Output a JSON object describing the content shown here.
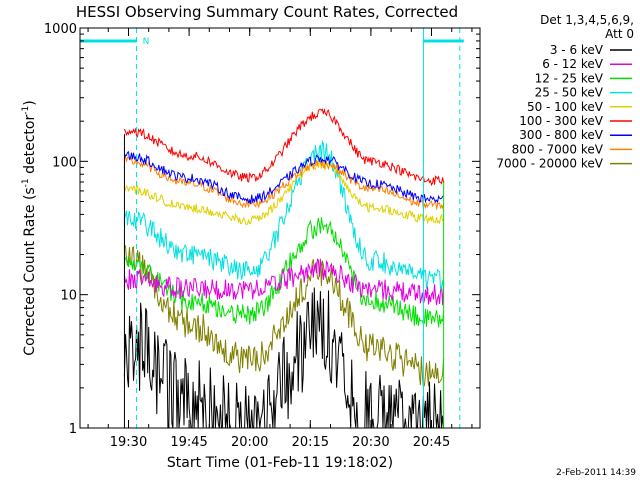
{
  "chart_data": {
    "type": "line",
    "title": "HESSI Observing Summary Count Rates, Corrected",
    "xlabel": "Start Time (01-Feb-11 19:18:02)",
    "ylabel": "Corrected Count Rate (s",
    "ylabel_sup1": "-1",
    "ylabel_mid": " detector",
    "ylabel_sup2": "-1",
    "ylabel_end": ")",
    "y_scale": "log",
    "ylim": [
      1,
      1000
    ],
    "xlim_minutes": [
      19.3,
      20.95
    ],
    "x_ticks": [
      "19:30",
      "19:45",
      "20:00",
      "20:15",
      "20:30",
      "20:45"
    ],
    "y_ticks": [
      "1",
      "10",
      "100",
      "1000"
    ],
    "legend_header": [
      "Det 1,3,4,5,6,9,",
      "Att 0"
    ],
    "footer_date": "2-Feb-2011 14:39",
    "data_window": [
      "19:29",
      "20:48"
    ],
    "attenuator_marker": "N",
    "attenuator_intervals": [
      [
        "19:18",
        "19:32"
      ],
      [
        "20:43",
        "20:53"
      ]
    ],
    "series": [
      {
        "name": "3 - 6 keV",
        "color": "#000000",
        "values_at": {
          "19:30": 4.5,
          "19:45": 1.5,
          "20:00": 1.0,
          "20:18": 5.5,
          "20:30": 1.2,
          "20:45": 1.0
        }
      },
      {
        "name": "6 - 12 keV",
        "color": "#e000e0",
        "values_at": {
          "19:30": 13,
          "19:45": 11,
          "20:00": 11,
          "20:18": 15.5,
          "20:30": 11,
          "20:45": 10
        }
      },
      {
        "name": "12 - 25 keV",
        "color": "#00e000",
        "values_at": {
          "19:30": 18,
          "19:45": 9,
          "20:00": 7,
          "20:18": 33,
          "20:30": 9,
          "20:45": 6.5
        }
      },
      {
        "name": "25 - 50 keV",
        "color": "#00e0e0",
        "values_at": {
          "19:30": 38,
          "19:45": 20,
          "20:00": 15,
          "20:18": 120,
          "20:30": 18,
          "20:45": 13
        }
      },
      {
        "name": "50 - 100 keV",
        "color": "#e0d000",
        "values_at": {
          "19:30": 62,
          "19:45": 45,
          "20:00": 36,
          "20:18": 95,
          "20:30": 45,
          "20:45": 37
        }
      },
      {
        "name": "100 - 300 keV",
        "color": "#ff0000",
        "values_at": {
          "19:30": 170,
          "19:45": 110,
          "20:00": 75,
          "20:18": 230,
          "20:30": 100,
          "20:45": 72
        }
      },
      {
        "name": "300 - 800 keV",
        "color": "#0000ff",
        "values_at": {
          "19:30": 110,
          "19:45": 75,
          "20:00": 52,
          "20:18": 105,
          "20:30": 68,
          "20:45": 52
        }
      },
      {
        "name": "800 - 7000 keV",
        "color": "#ff8000",
        "values_at": {
          "19:30": 100,
          "19:45": 68,
          "20:00": 48,
          "20:18": 97,
          "20:30": 62,
          "20:45": 47
        }
      },
      {
        "name": "7000 - 20000 keV",
        "color": "#808000",
        "values_at": {
          "19:30": 18,
          "19:45": 6,
          "20:00": 3.2,
          "20:18": 15,
          "20:30": 4,
          "20:45": 2.6
        }
      }
    ]
  }
}
